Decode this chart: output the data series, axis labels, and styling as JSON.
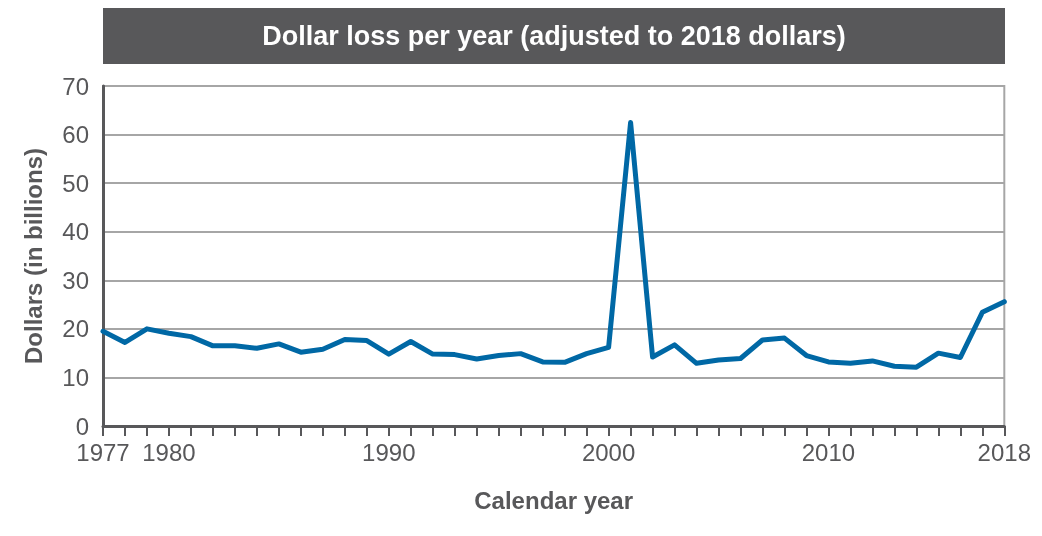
{
  "chart_data": {
    "type": "line",
    "title": "Dollar loss per year (adjusted to 2018 dollars)",
    "xlabel": "Calendar year",
    "ylabel": "Dollars (in billions)",
    "x": [
      1977,
      1978,
      1979,
      1980,
      1981,
      1982,
      1983,
      1984,
      1985,
      1986,
      1987,
      1988,
      1989,
      1990,
      1991,
      1992,
      1993,
      1994,
      1995,
      1996,
      1997,
      1998,
      1999,
      2000,
      2001,
      2002,
      2003,
      2004,
      2005,
      2006,
      2007,
      2008,
      2009,
      2010,
      2011,
      2012,
      2013,
      2014,
      2015,
      2016,
      2017,
      2018
    ],
    "series": [
      {
        "color": "#0068a5",
        "values": [
          19.5,
          17.2,
          20.0,
          19.1,
          18.4,
          16.5,
          16.5,
          16.0,
          16.9,
          15.2,
          15.8,
          17.8,
          17.6,
          14.8,
          17.4,
          14.8,
          14.7,
          13.8,
          14.5,
          14.9,
          13.2,
          13.1,
          14.9,
          16.2,
          62.5,
          14.2,
          16.7,
          12.9,
          13.6,
          13.9,
          17.7,
          18.1,
          14.5,
          13.2,
          12.9,
          13.4,
          12.3,
          12.1,
          15.0,
          14.1,
          23.4,
          25.6
        ]
      }
    ],
    "xlim": [
      1977,
      2018
    ],
    "xticks": [
      1977,
      {
        "value": 1978,
        "label": null
      },
      {
        "value": 1979,
        "label": null
      },
      1980,
      {
        "value": 1981,
        "label": null
      },
      {
        "value": 1982,
        "label": null
      },
      {
        "value": 1983,
        "label": null
      },
      {
        "value": 1984,
        "label": null
      },
      {
        "value": 1985,
        "label": null
      },
      {
        "value": 1986,
        "label": null
      },
      {
        "value": 1987,
        "label": null
      },
      {
        "value": 1988,
        "label": null
      },
      {
        "value": 1989,
        "label": null
      },
      1990,
      {
        "value": 1991,
        "label": null
      },
      {
        "value": 1992,
        "label": null
      },
      {
        "value": 1993,
        "label": null
      },
      {
        "value": 1994,
        "label": null
      },
      {
        "value": 1995,
        "label": null
      },
      {
        "value": 1996,
        "label": null
      },
      {
        "value": 1997,
        "label": null
      },
      {
        "value": 1998,
        "label": null
      },
      {
        "value": 1999,
        "label": null
      },
      2000,
      {
        "value": 2001,
        "label": null
      },
      {
        "value": 2002,
        "label": null
      },
      {
        "value": 2003,
        "label": null
      },
      {
        "value": 2004,
        "label": null
      },
      {
        "value": 2005,
        "label": null
      },
      {
        "value": 2006,
        "label": null
      },
      {
        "value": 2007,
        "label": null
      },
      {
        "value": 2008,
        "label": null
      },
      {
        "value": 2009,
        "label": null
      },
      2010,
      {
        "value": 2011,
        "label": null
      },
      {
        "value": 2012,
        "label": null
      },
      {
        "value": 2013,
        "label": null
      },
      {
        "value": 2014,
        "label": null
      },
      {
        "value": 2015,
        "label": null
      },
      {
        "value": 2016,
        "label": null
      },
      {
        "value": 2017,
        "label": null
      },
      2018
    ],
    "ylim": [
      0,
      70
    ],
    "yticks": [
      0,
      10,
      20,
      30,
      40,
      50,
      60,
      70
    ],
    "grid": "y",
    "marker": "none",
    "line_style": "solid"
  }
}
